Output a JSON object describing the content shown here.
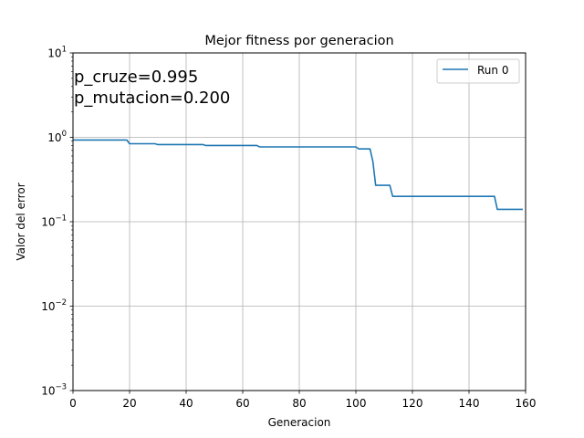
{
  "chart_data": {
    "type": "line",
    "title": "Mejor fitness por generacion",
    "xlabel": "Generacion",
    "ylabel": "Valor del error",
    "yscale": "log",
    "xlim": [
      0,
      160
    ],
    "ylim": [
      0.001,
      10
    ],
    "xticks": [
      0,
      20,
      40,
      60,
      80,
      100,
      120,
      140,
      160
    ],
    "yticks": [
      {
        "value": 0.001,
        "base": "10",
        "exp": "−3"
      },
      {
        "value": 0.01,
        "base": "10",
        "exp": "−2"
      },
      {
        "value": 0.1,
        "base": "10",
        "exp": "−1"
      },
      {
        "value": 1,
        "base": "10",
        "exp": "0"
      },
      {
        "value": 10,
        "base": "10",
        "exp": "1"
      }
    ],
    "grid": true,
    "legend_position": "top-right",
    "annotations": [
      "p_cruze=0.995",
      "p_mutacion=0.200"
    ],
    "series": [
      {
        "name": "Run 0",
        "color": "#1f77b4",
        "x": [
          0,
          19,
          20,
          29,
          30,
          46,
          47,
          65,
          66,
          100,
          101,
          105,
          106,
          107,
          112,
          113,
          149,
          150,
          159
        ],
        "y": [
          0.93,
          0.93,
          0.84,
          0.84,
          0.82,
          0.82,
          0.8,
          0.8,
          0.77,
          0.77,
          0.73,
          0.73,
          0.52,
          0.27,
          0.27,
          0.2,
          0.2,
          0.14,
          0.14
        ]
      }
    ]
  }
}
